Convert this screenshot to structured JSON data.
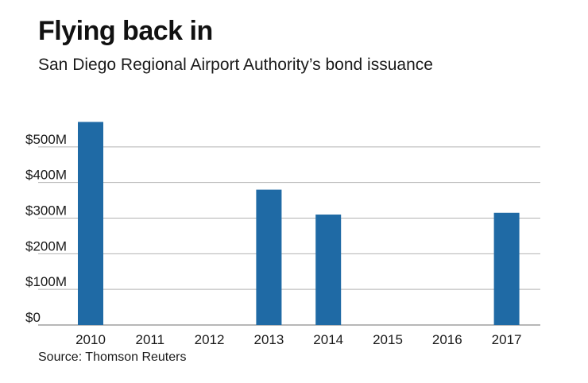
{
  "chart_data": {
    "type": "bar",
    "title": "Flying back in",
    "subtitle": "San Diego Regional Airport Authority’s bond issuance",
    "source": "Source: Thomson Reuters",
    "xlabel": "",
    "ylabel": "",
    "categories": [
      "2010",
      "2011",
      "2012",
      "2013",
      "2014",
      "2015",
      "2016",
      "2017"
    ],
    "values": [
      570,
      0,
      0,
      380,
      310,
      0,
      0,
      315
    ],
    "unit": "$M",
    "ylim": [
      0,
      600
    ],
    "yticks": [
      0,
      100,
      200,
      300,
      400,
      500
    ],
    "ytick_labels": [
      "$0",
      "$100M",
      "$200M",
      "$300M",
      "$400M",
      "$500M"
    ],
    "grid": true,
    "bar_color": "#1f6aa5",
    "grid_color": "#b3b3b3"
  }
}
